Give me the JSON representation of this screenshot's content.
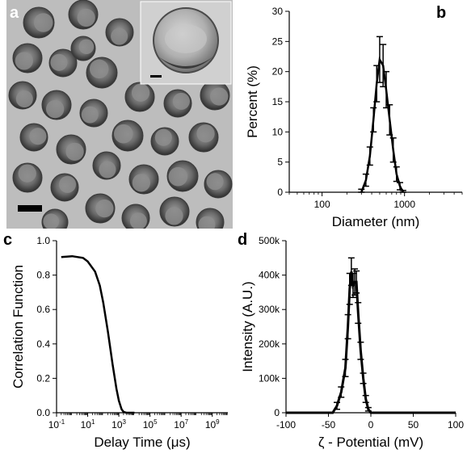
{
  "panels": {
    "a": {
      "letter": "a"
    },
    "b": {
      "letter": "b"
    },
    "c": {
      "letter": "c"
    },
    "d": {
      "letter": "d"
    }
  },
  "chart_data": [
    {
      "panel": "b",
      "type": "line",
      "xscale": "log",
      "xlabel": "Diameter (nm)",
      "ylabel": "Percent (%)",
      "xlim": [
        40,
        5000
      ],
      "ylim": [
        0,
        30
      ],
      "xticks": [
        100,
        1000
      ],
      "xtick_labels": [
        "100",
        "1000"
      ],
      "yticks": [
        0,
        5,
        10,
        15,
        20,
        25,
        30
      ],
      "ytick_labels": [
        "0",
        "5",
        "10",
        "15",
        "20",
        "25",
        "30"
      ],
      "x": [
        300,
        340,
        380,
        420,
        460,
        500,
        550,
        600,
        660,
        730,
        800,
        880,
        960
      ],
      "y": [
        0,
        2,
        6,
        12,
        18,
        22,
        21,
        17,
        12,
        7,
        3,
        1,
        0
      ],
      "error": [
        0.5,
        1,
        1.5,
        2,
        3,
        3.8,
        3.5,
        3,
        2.5,
        2,
        1.2,
        0.6,
        0.3
      ]
    },
    {
      "panel": "c",
      "type": "line",
      "xscale": "log",
      "xlabel": "Delay Time (μs)",
      "ylabel": "Correlation Function",
      "xlim": [
        0.1,
        10000000000
      ],
      "ylim": [
        0,
        1.0
      ],
      "xticks": [
        0.1,
        10,
        1000,
        100000,
        10000000,
        1000000000
      ],
      "xtick_labels": [
        "10⁻¹",
        "10¹",
        "10³",
        "10⁵",
        "10⁷",
        "10⁹"
      ],
      "yticks": [
        0,
        0.2,
        0.4,
        0.6,
        0.8,
        1.0
      ],
      "ytick_labels": [
        "0.0",
        "0.2",
        "0.4",
        "0.6",
        "0.8",
        "1.0"
      ],
      "x": [
        0.2,
        1,
        5,
        10,
        30,
        60,
        100,
        200,
        400,
        700,
        1000,
        1500,
        2000,
        3000,
        5000,
        10000
      ],
      "y": [
        0.905,
        0.91,
        0.9,
        0.88,
        0.82,
        0.74,
        0.64,
        0.47,
        0.28,
        0.14,
        0.07,
        0.02,
        0.005,
        0.0,
        0.0,
        0.0
      ]
    },
    {
      "panel": "d",
      "type": "line",
      "xlabel": "ζ - Potential (mV)",
      "ylabel": "Intensity (A.U.)",
      "xlim": [
        -100,
        100
      ],
      "ylim": [
        0,
        500000
      ],
      "xticks": [
        -100,
        -50,
        0,
        50,
        100
      ],
      "xtick_labels": [
        "-100",
        "-50",
        "0",
        "50",
        "100"
      ],
      "yticks": [
        0,
        100000,
        200000,
        300000,
        400000,
        500000
      ],
      "ytick_labels": [
        "0",
        "100k",
        "200k",
        "300k",
        "400k",
        "500k"
      ],
      "x": [
        -100,
        -45,
        -40,
        -35,
        -30,
        -27,
        -25,
        -23,
        -21,
        -19,
        -17,
        -15,
        -12,
        -9,
        -6,
        -3,
        0,
        100
      ],
      "y": [
        0,
        0,
        20000,
        60000,
        130000,
        250000,
        360000,
        410000,
        370000,
        380000,
        380000,
        290000,
        180000,
        100000,
        40000,
        10000,
        0,
        0
      ],
      "error": [
        0,
        0,
        10000,
        15000,
        25000,
        35000,
        45000,
        40000,
        35000,
        38000,
        32000,
        30000,
        25000,
        15000,
        10000,
        5000,
        0,
        0
      ]
    }
  ]
}
